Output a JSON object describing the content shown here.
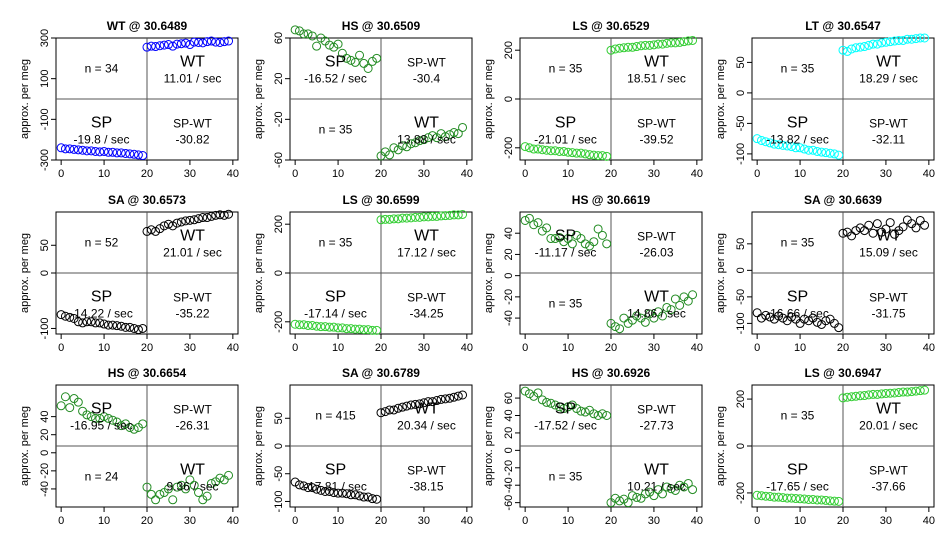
{
  "figure": {
    "ylabel": "approx. per meg",
    "x_ticks": [
      0,
      10,
      20,
      30,
      40
    ],
    "xlim": [
      0,
      40
    ]
  },
  "chart_data": [
    {
      "type": "scatter",
      "title": "WT @ 30.6489",
      "n_label": "n = 34",
      "color": "#0000ff",
      "ylim": [
        -300,
        300
      ],
      "ticks": [
        -300,
        -100,
        100,
        300
      ],
      "tick_labels": [
        "-300",
        "-100",
        "100",
        "300"
      ],
      "zero_line": false,
      "labels": {
        "sp": "SP",
        "sp_rate": "-19.8 / sec",
        "wt": "WT",
        "wt_rate": "11.01 / sec",
        "spwt": "SP-WT",
        "spwt_val": "-30.82"
      },
      "sp": [
        -240,
        -245,
        -245,
        -248,
        -250,
        -252,
        -255,
        -255,
        -258,
        -260,
        -258,
        -262,
        -262,
        -265,
        -265,
        -268,
        -270,
        -272,
        -275,
        -278
      ],
      "wt": [
        255,
        260,
        258,
        262,
        265,
        268,
        260,
        270,
        272,
        275,
        268,
        280,
        278,
        276,
        282,
        285,
        280,
        278,
        282,
        285
      ]
    },
    {
      "type": "scatter",
      "title": "HS @ 30.6509",
      "n_label": "n = 35",
      "color": "#228b22",
      "ylim": [
        -60,
        60
      ],
      "ticks": [
        -60,
        -20,
        20,
        60
      ],
      "tick_labels": [
        "-60",
        "-20",
        "20",
        "60"
      ],
      "zero_line": false,
      "labels": {
        "sp": "SP",
        "sp_rate": "-16.52 / sec",
        "wt": "WT",
        "wt_rate": "13.88 / sec",
        "spwt": "SP-WT",
        "spwt_val": "-30.4"
      },
      "sp": [
        68,
        67,
        64,
        64,
        62,
        52,
        60,
        57,
        53,
        51,
        54,
        45,
        40,
        38,
        36,
        43,
        35,
        30,
        37,
        40
      ],
      "wt": [
        -56,
        -52,
        -55,
        -48,
        -50,
        -46,
        -47,
        -44,
        -43,
        -41,
        -40,
        -38,
        -36,
        -38,
        -34,
        -37,
        -35,
        -33,
        -34,
        -28
      ]
    },
    {
      "type": "scatter",
      "title": "LS @ 30.6529",
      "n_label": "n = 35",
      "color": "#32cd32",
      "ylim": [
        -250,
        250
      ],
      "ticks": [
        -200,
        0,
        200
      ],
      "tick_labels": [
        "-200",
        "0",
        "200"
      ],
      "zero_line": true,
      "labels": {
        "sp": "SP",
        "sp_rate": "-21.01 / sec",
        "wt": "WT",
        "wt_rate": "18.51 / sec",
        "spwt": "SP-WT",
        "spwt_val": "-39.52"
      },
      "sp": [
        -195,
        -200,
        -205,
        -205,
        -208,
        -210,
        -212,
        -212,
        -215,
        -215,
        -218,
        -220,
        -222,
        -222,
        -225,
        -228,
        -230,
        -232,
        -232,
        -235
      ],
      "wt": [
        200,
        205,
        208,
        210,
        212,
        212,
        215,
        218,
        220,
        220,
        222,
        225,
        225,
        228,
        230,
        230,
        232,
        235,
        238,
        240
      ]
    },
    {
      "type": "scatter",
      "title": "LT @ 30.6547",
      "n_label": "n = 35",
      "color": "#00ffff",
      "ylim": [
        -110,
        90
      ],
      "ticks": [
        -100,
        -50,
        0,
        50
      ],
      "tick_labels": [
        "-100",
        "-50",
        "0",
        "50"
      ],
      "zero_line": true,
      "labels": {
        "sp": "SP",
        "sp_rate": "-13.82 / sec",
        "wt": "WT",
        "wt_rate": "18.29 / sec",
        "spwt": "SP-WT",
        "spwt_val": "-32.11"
      },
      "sp": [
        -75,
        -78,
        -80,
        -82,
        -84,
        -85,
        -86,
        -87,
        -88,
        -90,
        -90,
        -92,
        -94,
        -94,
        -96,
        -97,
        -98,
        -99,
        -100,
        -102
      ],
      "wt": [
        70,
        68,
        72,
        74,
        75,
        76,
        78,
        80,
        80,
        82,
        83,
        84,
        85,
        86,
        86,
        88,
        88,
        89,
        90,
        90
      ]
    },
    {
      "type": "scatter",
      "title": "SA @ 30.6573",
      "n_label": "n = 52",
      "color": "#000000",
      "ylim": [
        -110,
        110
      ],
      "ticks": [
        -100,
        0,
        50
      ],
      "tick_labels": [
        "-100",
        "0",
        "50"
      ],
      "zero_line": true,
      "labels": {
        "sp": "SP",
        "sp_rate": "-14.22 / sec",
        "wt": "WT",
        "wt_rate": "21.01 / sec",
        "spwt": "SP-WT",
        "spwt_val": "-35.22"
      },
      "sp": [
        -75,
        -78,
        -80,
        -82,
        -88,
        -90,
        -88,
        -88,
        -90,
        -90,
        -92,
        -94,
        -94,
        -95,
        -96,
        -98,
        -98,
        -100,
        -102,
        -100
      ],
      "wt": [
        75,
        78,
        75,
        80,
        85,
        88,
        85,
        90,
        92,
        94,
        95,
        96,
        98,
        100,
        100,
        102,
        104,
        105,
        104,
        106
      ]
    },
    {
      "type": "scatter",
      "title": "LS @ 30.6599",
      "n_label": "n = 35",
      "color": "#32cd32",
      "ylim": [
        -250,
        250
      ],
      "ticks": [
        -200,
        0,
        200
      ],
      "tick_labels": [
        "-200",
        "0",
        "200"
      ],
      "zero_line": true,
      "labels": {
        "sp": "SP",
        "sp_rate": "-17.14 / sec",
        "wt": "WT",
        "wt_rate": "17.12 / sec",
        "spwt": "SP-WT",
        "spwt_val": "-34.25"
      },
      "sp": [
        -210,
        -212,
        -212,
        -215,
        -215,
        -218,
        -220,
        -220,
        -222,
        -222,
        -225,
        -225,
        -228,
        -228,
        -230,
        -230,
        -232,
        -232,
        -235,
        -235
      ],
      "wt": [
        218,
        220,
        220,
        222,
        222,
        225,
        225,
        226,
        228,
        228,
        230,
        230,
        232,
        232,
        234,
        235,
        236,
        238,
        238,
        240
      ]
    },
    {
      "type": "scatter",
      "title": "HS @ 30.6619",
      "n_label": "n = 35",
      "color": "#228b22",
      "ylim": [
        -55,
        60
      ],
      "ticks": [
        -40,
        -20,
        0,
        20,
        40
      ],
      "tick_labels": [
        "-40",
        "-20",
        "0",
        "20",
        "40"
      ],
      "zero_line": true,
      "labels": {
        "sp": "SP",
        "sp_rate": "-11.17 / sec",
        "wt": "WT",
        "wt_rate": "14.86 / sec",
        "spwt": "SP-WT",
        "spwt_val": "-26.03"
      },
      "sp": [
        52,
        54,
        48,
        50,
        42,
        45,
        35,
        35,
        36,
        32,
        35,
        30,
        38,
        35,
        30,
        28,
        32,
        44,
        38,
        30
      ],
      "wt": [
        -45,
        -48,
        -50,
        -40,
        -45,
        -42,
        -38,
        -40,
        -44,
        -36,
        -40,
        -34,
        -38,
        -30,
        -32,
        -22,
        -28,
        -20,
        -24,
        -18
      ]
    },
    {
      "type": "scatter",
      "title": "SA @ 30.6639",
      "n_label": "n = 35",
      "color": "#000000",
      "ylim": [
        -120,
        110
      ],
      "ticks": [
        -100,
        -50,
        0,
        50
      ],
      "tick_labels": [
        "-100",
        "-50",
        "0",
        "50"
      ],
      "zero_line": true,
      "labels": {
        "sp": "SP",
        "sp_rate": "-16.66 / sec",
        "wt": "WT",
        "wt_rate": "15.09 / sec",
        "spwt": "SP-WT",
        "spwt_val": "-31.75"
      },
      "sp": [
        -80,
        -90,
        -85,
        -88,
        -92,
        -86,
        -90,
        -95,
        -88,
        -92,
        -100,
        -92,
        -95,
        -90,
        -98,
        -102,
        -95,
        -92,
        -100,
        -108
      ],
      "wt": [
        70,
        72,
        65,
        75,
        80,
        75,
        85,
        70,
        88,
        72,
        78,
        90,
        68,
        75,
        82,
        95,
        88,
        80,
        94,
        85
      ]
    },
    {
      "type": "scatter",
      "title": "HS @ 30.6654",
      "n_label": "n = 24",
      "color": "#228b22",
      "ylim": [
        -60,
        75
      ],
      "ticks": [
        -40,
        -20,
        0,
        20,
        40
      ],
      "tick_labels": [
        "-40",
        "-20",
        "0",
        "20",
        "40"
      ],
      "zero_line": true,
      "labels": {
        "sp": "SP",
        "sp_rate": "-16.95 / sec",
        "wt": "WT",
        "wt_rate": "9.36 / sec",
        "spwt": "SP-WT",
        "spwt_val": "-26.31"
      },
      "sp": [
        52,
        62,
        50,
        60,
        56,
        46,
        42,
        40,
        38,
        38,
        40,
        38,
        36,
        34,
        30,
        32,
        28,
        26,
        28,
        32
      ],
      "wt": [
        -38,
        -46,
        -52,
        -46,
        -44,
        -40,
        -52,
        -38,
        -36,
        -40,
        -30,
        -36,
        -44,
        -52,
        -48,
        -34,
        -32,
        -28,
        -30,
        -25
      ]
    },
    {
      "type": "scatter",
      "title": "SA @ 30.6789",
      "n_label": "n = 415",
      "color": "#000000",
      "ylim": [
        -110,
        110
      ],
      "ticks": [
        -100,
        -50,
        0,
        50
      ],
      "tick_labels": [
        "-100",
        "-50",
        "0",
        "50"
      ],
      "zero_line": true,
      "labels": {
        "sp": "SP",
        "sp_rate": "-17.81 / sec",
        "wt": "WT",
        "wt_rate": "20.34 / sec",
        "spwt": "SP-WT",
        "spwt_val": "-38.15"
      },
      "sp": [
        -65,
        -70,
        -72,
        -75,
        -75,
        -78,
        -80,
        -82,
        -82,
        -84,
        -85,
        -85,
        -86,
        -88,
        -88,
        -90,
        -92,
        -92,
        -95,
        -96
      ],
      "wt": [
        60,
        62,
        65,
        65,
        68,
        70,
        72,
        74,
        75,
        76,
        78,
        80,
        80,
        82,
        84,
        85,
        86,
        88,
        90,
        92
      ]
    },
    {
      "type": "scatter",
      "title": "HS @ 30.6926",
      "n_label": "n = 35",
      "color": "#228b22",
      "ylim": [
        -65,
        75
      ],
      "ticks": [
        -60,
        -40,
        -20,
        0,
        20,
        40,
        60
      ],
      "tick_labels": [
        "-60",
        "-40",
        "-20",
        "0",
        "20",
        "40",
        "60"
      ],
      "zero_line": true,
      "labels": {
        "sp": "SP",
        "sp_rate": "-17.52 / sec",
        "wt": "WT",
        "wt_rate": "10.21 / sec",
        "spwt": "SP-WT",
        "spwt_val": "-27.73"
      },
      "sp": [
        68,
        65,
        62,
        66,
        58,
        55,
        54,
        52,
        50,
        48,
        50,
        52,
        48,
        45,
        44,
        46,
        42,
        40,
        42,
        40
      ],
      "wt": [
        -60,
        -55,
        -58,
        -56,
        -60,
        -52,
        -54,
        -55,
        -50,
        -48,
        -52,
        -45,
        -50,
        -42,
        -44,
        -46,
        -40,
        -42,
        -38,
        -45
      ]
    },
    {
      "type": "scatter",
      "title": "LS @ 30.6947",
      "n_label": "n = 35",
      "color": "#32cd32",
      "ylim": [
        -260,
        260
      ],
      "ticks": [
        -200,
        0,
        200
      ],
      "tick_labels": [
        "-200",
        "0",
        "200"
      ],
      "zero_line": true,
      "labels": {
        "sp": "SP",
        "sp_rate": "-17.65 / sec",
        "wt": "WT",
        "wt_rate": "20.01 / sec",
        "spwt": "SP-WT",
        "spwt_val": "-37.66"
      },
      "sp": [
        -210,
        -212,
        -214,
        -215,
        -218,
        -218,
        -220,
        -222,
        -222,
        -224,
        -225,
        -226,
        -228,
        -228,
        -230,
        -230,
        -232,
        -234,
        -235,
        -236
      ],
      "wt": [
        205,
        208,
        210,
        212,
        214,
        215,
        218,
        220,
        220,
        222,
        224,
        225,
        226,
        228,
        230,
        230,
        232,
        234,
        236,
        238
      ]
    }
  ]
}
